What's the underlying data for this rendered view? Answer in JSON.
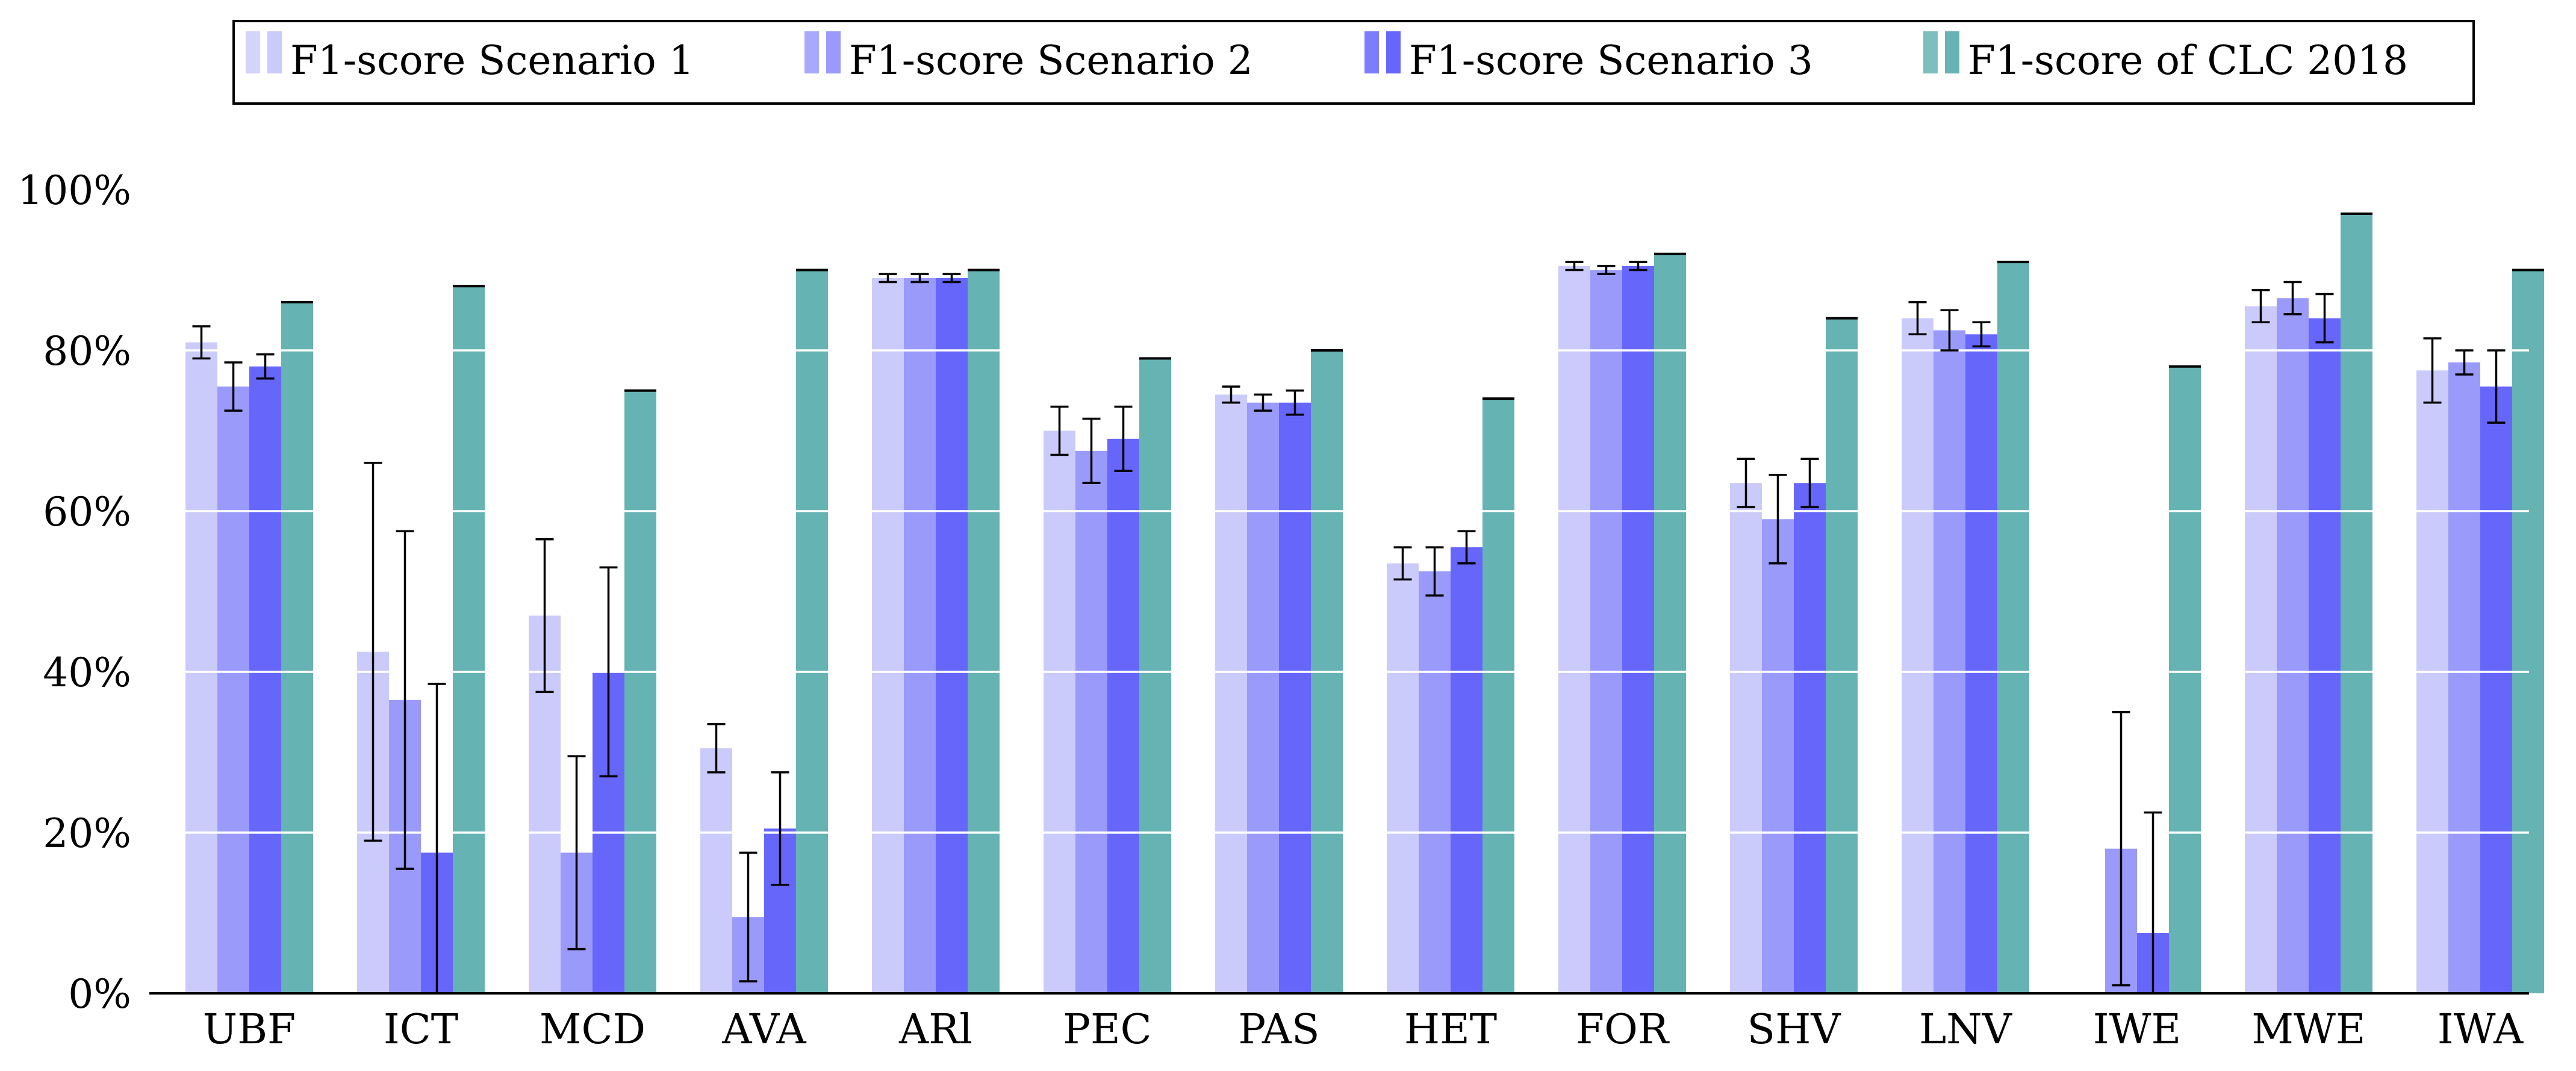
{
  "chart_data": {
    "type": "bar",
    "title": "",
    "xlabel": "",
    "ylabel": "",
    "ylim": [
      0,
      100
    ],
    "yticks": [
      0,
      20,
      40,
      60,
      80,
      100
    ],
    "ytick_labels": [
      "0%",
      "20%",
      "40%",
      "60%",
      "80%",
      "100%"
    ],
    "grid": true,
    "legend_position": "top-center",
    "categories": [
      "UBF",
      "ICT",
      "MCD",
      "AVA",
      "ARl",
      "PEC",
      "PAS",
      "HET",
      "FOR",
      "SHV",
      "LNV",
      "IWE",
      "MWE",
      "IWA"
    ],
    "series": [
      {
        "name": "F1-score Scenario 1",
        "color": "#cbcbfb",
        "values": [
          81,
          42.5,
          47,
          30.5,
          89,
          70,
          74.5,
          53.5,
          90.5,
          63.5,
          84,
          0,
          85.5,
          77.5
        ],
        "errors": [
          2,
          23.5,
          9.5,
          3,
          0.5,
          3,
          1,
          2,
          0.5,
          3,
          2,
          0,
          2,
          4
        ]
      },
      {
        "name": "F1-score Scenario 2",
        "color": "#9a9afb",
        "values": [
          75.5,
          36.5,
          17.5,
          9.5,
          89,
          67.5,
          73.5,
          52.5,
          90,
          59,
          82.5,
          18,
          86.5,
          78.5
        ],
        "errors": [
          3,
          21,
          12,
          8,
          0.5,
          4,
          1,
          3,
          0.5,
          5.5,
          2.5,
          17,
          2,
          1.5
        ]
      },
      {
        "name": "F1-score Scenario 3",
        "color": "#6666fb",
        "values": [
          78,
          17.5,
          40,
          20.5,
          89,
          69,
          73.5,
          55.5,
          90.5,
          63.5,
          82,
          7.5,
          84,
          75.5
        ],
        "errors": [
          1.5,
          21,
          13,
          7,
          0.5,
          4,
          1.5,
          2,
          0.5,
          3,
          1.5,
          15,
          3,
          4.5
        ]
      },
      {
        "name": "F1-score of CLC 2018",
        "color": "#66b3b3",
        "values": [
          86,
          88,
          75,
          90,
          90,
          79,
          80,
          74,
          92,
          84,
          91,
          78,
          97,
          90
        ],
        "errors": [
          0,
          0,
          0,
          0,
          0,
          0,
          0,
          0,
          0,
          0,
          0,
          0,
          0,
          0
        ]
      }
    ]
  }
}
